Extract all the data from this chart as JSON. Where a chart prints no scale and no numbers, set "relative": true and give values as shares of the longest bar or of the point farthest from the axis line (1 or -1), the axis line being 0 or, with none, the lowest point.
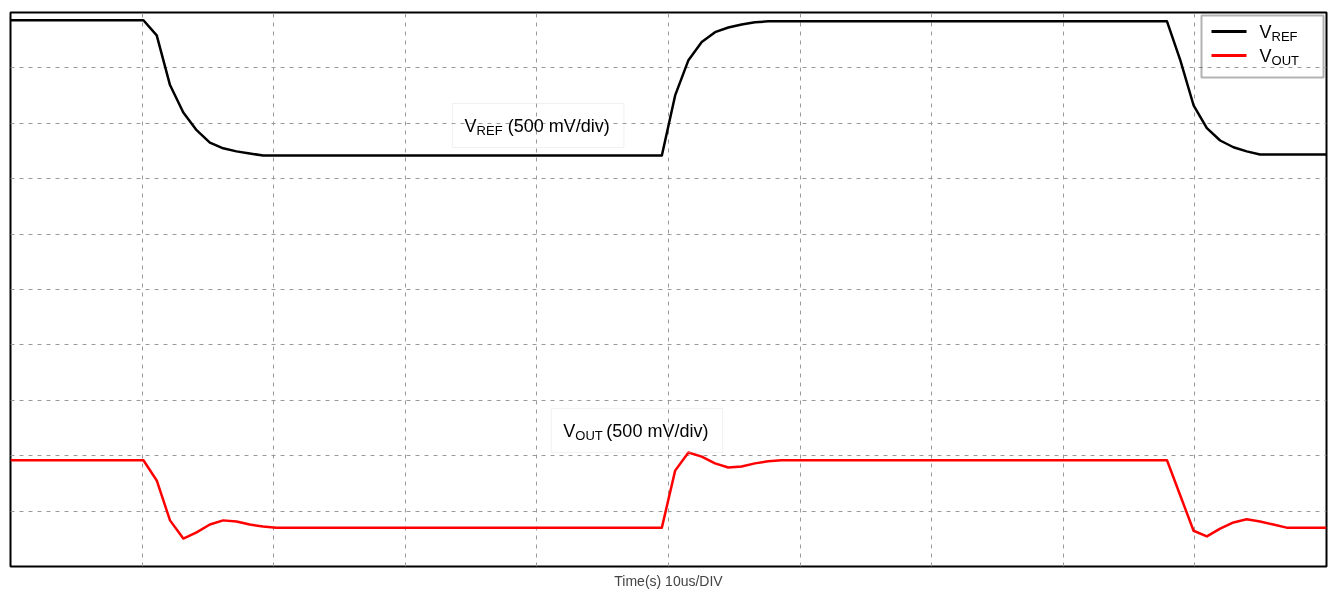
{
  "chart_data": {
    "type": "line",
    "relative": true,
    "xlabel": "Time(s) 10us/DIV",
    "grid": true,
    "legend": "top right",
    "line_style": "solid",
    "marker": "none",
    "categories": [
      null,
      null,
      null,
      null,
      null,
      null,
      null,
      null,
      null,
      null,
      null,
      null,
      null,
      null,
      null,
      null,
      null,
      null,
      null,
      null,
      null,
      null,
      null,
      null,
      null,
      null,
      null,
      null,
      null,
      null,
      null,
      null,
      null,
      null,
      null,
      null,
      null,
      null,
      null,
      null,
      null,
      null,
      null,
      null,
      null,
      null,
      null,
      null,
      null,
      null,
      null,
      null,
      null,
      null,
      null,
      null,
      null,
      null,
      null,
      null,
      null,
      null,
      null,
      null,
      null,
      null,
      null,
      null,
      null,
      null,
      null,
      null,
      null,
      null,
      null,
      null,
      null,
      null,
      null,
      null,
      null,
      null,
      null,
      null,
      null,
      null,
      null,
      null,
      null,
      null,
      null,
      null,
      null,
      null,
      null,
      null,
      null,
      null,
      null,
      null
    ],
    "series": [
      {
        "name": "V$_{REF}$",
        "color": "#000000",
        "values": [
          1.0,
          1.0,
          1.0,
          1.0,
          1.0,
          1.0,
          1.0,
          1.0,
          1.0,
          1.0,
          1.0,
          0.971,
          0.875,
          0.822,
          0.788,
          0.764,
          0.753,
          0.747,
          0.743,
          0.739,
          0.739,
          0.739,
          0.739,
          0.739,
          0.739,
          0.739,
          0.739,
          0.739,
          0.739,
          0.739,
          0.739,
          0.739,
          0.739,
          0.739,
          0.739,
          0.739,
          0.739,
          0.739,
          0.739,
          0.739,
          0.739,
          0.739,
          0.739,
          0.739,
          0.739,
          0.739,
          0.739,
          0.739,
          0.739,
          0.739,
          0.855,
          0.923,
          0.958,
          0.977,
          0.986,
          0.992,
          0.996,
          0.998,
          0.998,
          0.998,
          0.998,
          0.998,
          0.998,
          0.998,
          0.998,
          0.998,
          0.998,
          0.998,
          0.998,
          0.998,
          0.998,
          0.998,
          0.998,
          0.998,
          0.998,
          0.998,
          0.998,
          0.998,
          0.998,
          0.998,
          0.998,
          0.998,
          0.998,
          0.998,
          0.998,
          0.998,
          0.998,
          0.998,
          0.923,
          0.836,
          0.792,
          0.768,
          0.755,
          0.747,
          0.741,
          0.741,
          0.741,
          0.741,
          0.741,
          0.741
        ]
      },
      {
        "name": "V$_{OUT}$",
        "color": "#ff0000",
        "values": [
          0.151,
          0.151,
          0.151,
          0.151,
          0.151,
          0.151,
          0.151,
          0.151,
          0.151,
          0.151,
          0.151,
          0.112,
          0.035,
          0.0,
          0.012,
          0.027,
          0.035,
          0.033,
          0.027,
          0.023,
          0.021,
          0.021,
          0.021,
          0.021,
          0.021,
          0.021,
          0.021,
          0.021,
          0.021,
          0.021,
          0.021,
          0.021,
          0.021,
          0.021,
          0.021,
          0.021,
          0.021,
          0.021,
          0.021,
          0.021,
          0.021,
          0.021,
          0.021,
          0.021,
          0.021,
          0.021,
          0.021,
          0.021,
          0.021,
          0.021,
          0.131,
          0.166,
          0.158,
          0.145,
          0.137,
          0.139,
          0.145,
          0.149,
          0.151,
          0.151,
          0.151,
          0.151,
          0.151,
          0.151,
          0.151,
          0.151,
          0.151,
          0.151,
          0.151,
          0.151,
          0.151,
          0.151,
          0.151,
          0.151,
          0.151,
          0.151,
          0.151,
          0.151,
          0.151,
          0.151,
          0.151,
          0.151,
          0.151,
          0.151,
          0.151,
          0.151,
          0.151,
          0.151,
          0.083,
          0.015,
          0.004,
          0.019,
          0.031,
          0.037,
          0.033,
          0.027,
          0.021,
          0.021,
          0.021,
          0.021
        ]
      }
    ],
    "annotations": [
      "V$_{REF}$ (500 mV/div)",
      "V$_{OUT}$ (500 mV/div)"
    ]
  }
}
